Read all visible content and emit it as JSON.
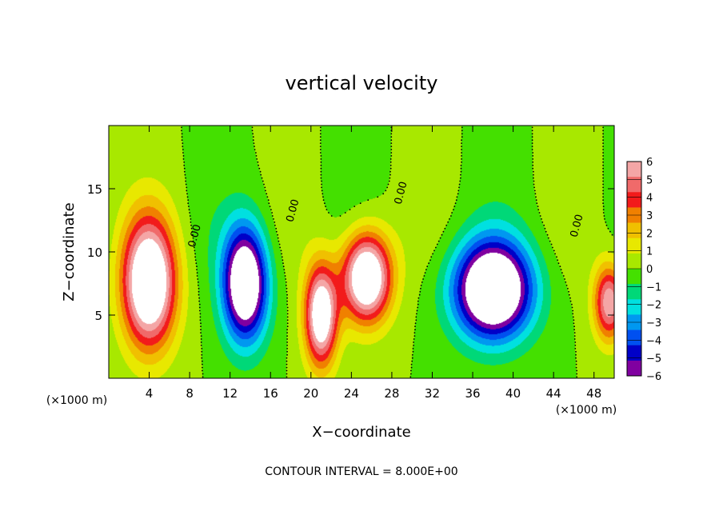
{
  "chart_data": {
    "type": "heatmap",
    "title": "vertical velocity",
    "xlabel": "X−coordinate",
    "ylabel": "Z−coordinate",
    "x_unit_left": "(×1000 m)",
    "x_unit_right": "(×1000 m)",
    "footnote": "CONTOUR INTERVAL = 8.000E+00",
    "xlim": [
      0,
      50
    ],
    "ylim": [
      0,
      20
    ],
    "x_ticks": [
      4,
      8,
      12,
      16,
      20,
      24,
      28,
      32,
      36,
      40,
      44,
      48
    ],
    "y_ticks": [
      5,
      10,
      15
    ],
    "colorbar": {
      "ticks": [
        6,
        5,
        4,
        3,
        2,
        1,
        0,
        -1,
        -2,
        -3,
        -4,
        -5,
        -6
      ],
      "tick_labels": [
        "6",
        "5",
        "4",
        "3",
        "2",
        "1",
        "0",
        "−1",
        "−2",
        "−3",
        "−4",
        "−5",
        "−6"
      ],
      "range": [
        -6,
        6
      ],
      "colors": [
        "#f4a6a6",
        "#f06a6a",
        "#f21b1b",
        "#f08000",
        "#f0c000",
        "#e8e800",
        "#a8e800",
        "#44e000",
        "#00d878",
        "#00e0e0",
        "#0098f0",
        "#0050f0",
        "#0000c8",
        "#8000a0"
      ]
    },
    "contour_labels": [
      {
        "text": "0.00",
        "x": 8.8,
        "y": 11.2
      },
      {
        "text": "0.00",
        "x": 18.5,
        "y": 13.2
      },
      {
        "text": "0.00",
        "x": 29.2,
        "y": 14.6
      },
      {
        "text": "0.00",
        "x": 46.6,
        "y": 12.0
      }
    ],
    "features": [
      {
        "kind": "updraft",
        "x": 4,
        "z": 7.5,
        "sx": 2.6,
        "sz": 5.0,
        "amp": 9
      },
      {
        "kind": "downdraft",
        "x": 13.5,
        "z": 7.5,
        "sx": 2.2,
        "sz": 4.5,
        "amp": -9
      },
      {
        "kind": "updraft",
        "x": 21,
        "z": 5.0,
        "sx": 1.6,
        "sz": 4.0,
        "amp": 8
      },
      {
        "kind": "updraft",
        "x": 25.5,
        "z": 8.0,
        "sx": 2.4,
        "sz": 3.5,
        "amp": 9
      },
      {
        "kind": "downdraft",
        "x": 38,
        "z": 7.0,
        "sx": 3.8,
        "sz": 3.8,
        "amp": -10
      },
      {
        "kind": "updraft",
        "x": 49.5,
        "z": 6.0,
        "sx": 1.5,
        "sz": 3.0,
        "amp": 6
      }
    ]
  }
}
